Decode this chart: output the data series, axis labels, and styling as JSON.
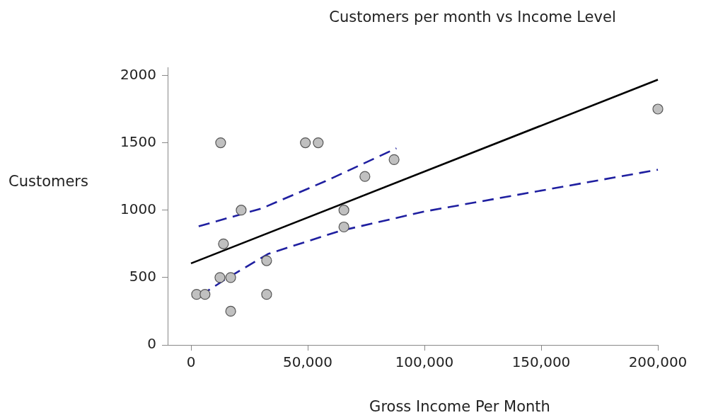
{
  "chart_data": {
    "type": "scatter",
    "title": "Customers per month vs Income Level",
    "xlabel": "Gross Income Per Month",
    "ylabel": "Customers",
    "xlim": [
      -10000,
      200000
    ],
    "ylim": [
      0,
      2060
    ],
    "xticks": [
      0,
      {
        "value": 50000,
        "label": "50,000"
      },
      {
        "value": 100000,
        "label": "100,000"
      },
      {
        "value": 150000,
        "label": "150,000"
      },
      {
        "value": 200000,
        "label": "200,000"
      }
    ],
    "yticks": [
      0,
      500,
      1000,
      1500,
      2000
    ],
    "grid": false,
    "legend": false,
    "series": [
      {
        "type": "scatter",
        "color": "#c0c0c0",
        "marker": "circle",
        "x": [
          2400,
          6000,
          12700,
          12400,
          13900,
          17000,
          17000,
          21500,
          32400,
          32400,
          49000,
          54500,
          65500,
          65500,
          74500,
          87000,
          200000
        ],
        "values": [
          375,
          375,
          1500,
          500,
          750,
          500,
          250,
          1000,
          625,
          375,
          1500,
          1500,
          1000,
          875,
          1250,
          1375,
          1750
        ]
      },
      {
        "type": "line",
        "color": "#000000",
        "marker": "none",
        "line_style": "solid",
        "x": [
          0,
          200000
        ],
        "values": [
          605,
          1968
        ]
      },
      {
        "type": "line",
        "color": "#1f1fa0",
        "marker": "none",
        "line_style": "dashed",
        "x": [
          3300,
          30300,
          57600,
          88000
        ],
        "values": [
          880,
          1013,
          1215,
          1459
        ]
      },
      {
        "type": "line",
        "color": "#1f1fa0",
        "marker": "none",
        "line_style": "dashed",
        "x": [
          4000,
          15000,
          33000,
          63600,
          100000,
          200000
        ],
        "values": [
          366,
          490,
          675,
          845,
          990,
          1300
        ]
      }
    ]
  }
}
